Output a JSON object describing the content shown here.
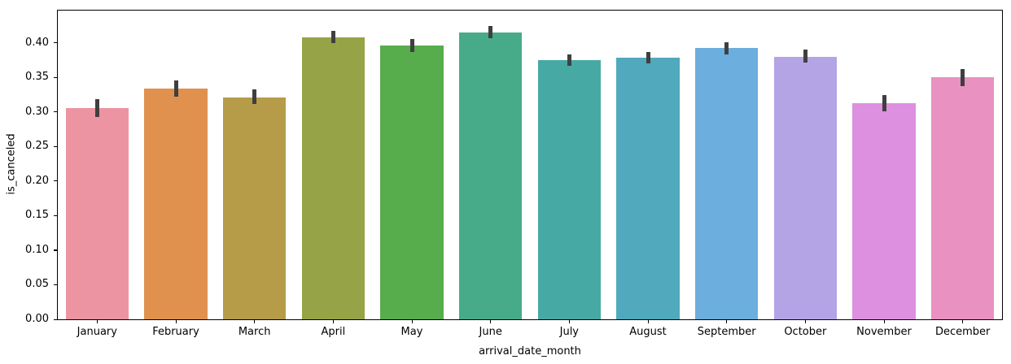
{
  "chart_data": {
    "type": "bar",
    "title": "",
    "xlabel": "arrival_date_month",
    "ylabel": "is_canceled",
    "categories": [
      "January",
      "February",
      "March",
      "April",
      "May",
      "June",
      "July",
      "August",
      "September",
      "October",
      "November",
      "December"
    ],
    "values": [
      0.305,
      0.334,
      0.321,
      0.408,
      0.396,
      0.415,
      0.375,
      0.378,
      0.392,
      0.38,
      0.312,
      0.35
    ],
    "error_bars": {
      "low": [
        0.292,
        0.322,
        0.311,
        0.4,
        0.387,
        0.406,
        0.367,
        0.37,
        0.383,
        0.371,
        0.301,
        0.337
      ],
      "high": [
        0.318,
        0.346,
        0.332,
        0.417,
        0.405,
        0.424,
        0.383,
        0.386,
        0.401,
        0.39,
        0.324,
        0.362
      ]
    },
    "bar_colors": [
      "#ec94a1",
      "#e0914e",
      "#b69c49",
      "#96a346",
      "#57ac4c",
      "#47ab89",
      "#47a9a3",
      "#50a9bc",
      "#6caede",
      "#b4a4e6",
      "#dd90e0",
      "#e991c0"
    ],
    "error_bar_color": "#3f3f3f",
    "axis_color": "#000000",
    "ylim": [
      0,
      0.4465
    ],
    "yticks": [
      0.0,
      0.05,
      0.1,
      0.15,
      0.2,
      0.25,
      0.3,
      0.35,
      0.4
    ],
    "ytick_labels": [
      "0.00",
      "0.05",
      "0.10",
      "0.15",
      "0.20",
      "0.25",
      "0.30",
      "0.35",
      "0.40"
    ],
    "bar_width_fraction": 0.8,
    "grid": false,
    "legend": "none"
  }
}
